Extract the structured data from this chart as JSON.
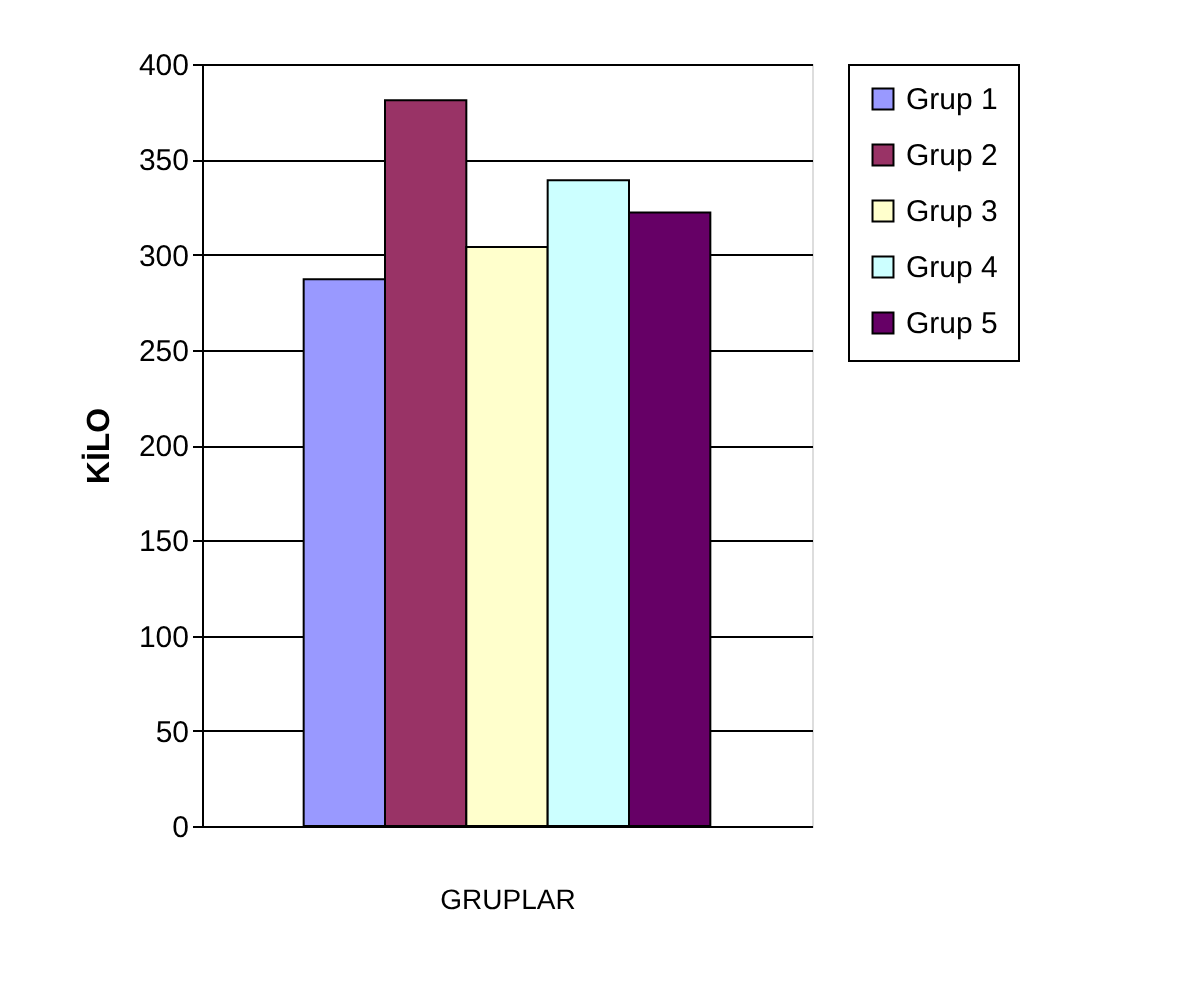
{
  "chart_data": {
    "type": "bar",
    "categories": [
      null
    ],
    "xlabel": "GRUPLAR",
    "ylabel": "KİLO",
    "series": [
      {
        "name": "Grup 1",
        "color": "#9999ff",
        "values": [
          287
        ]
      },
      {
        "name": "Grup 2",
        "color": "#993366",
        "values": [
          381
        ]
      },
      {
        "name": "Grup 3",
        "color": "#ffffcc",
        "values": [
          304
        ]
      },
      {
        "name": "Grup 4",
        "color": "#ccffff",
        "values": [
          339
        ]
      },
      {
        "name": "Grup 5",
        "color": "#660066",
        "values": [
          322
        ]
      }
    ],
    "ylim": [
      0,
      400
    ],
    "yticks": [
      0,
      50,
      100,
      150,
      200,
      250,
      300,
      350,
      400
    ],
    "grid": "y",
    "legend": "right"
  }
}
